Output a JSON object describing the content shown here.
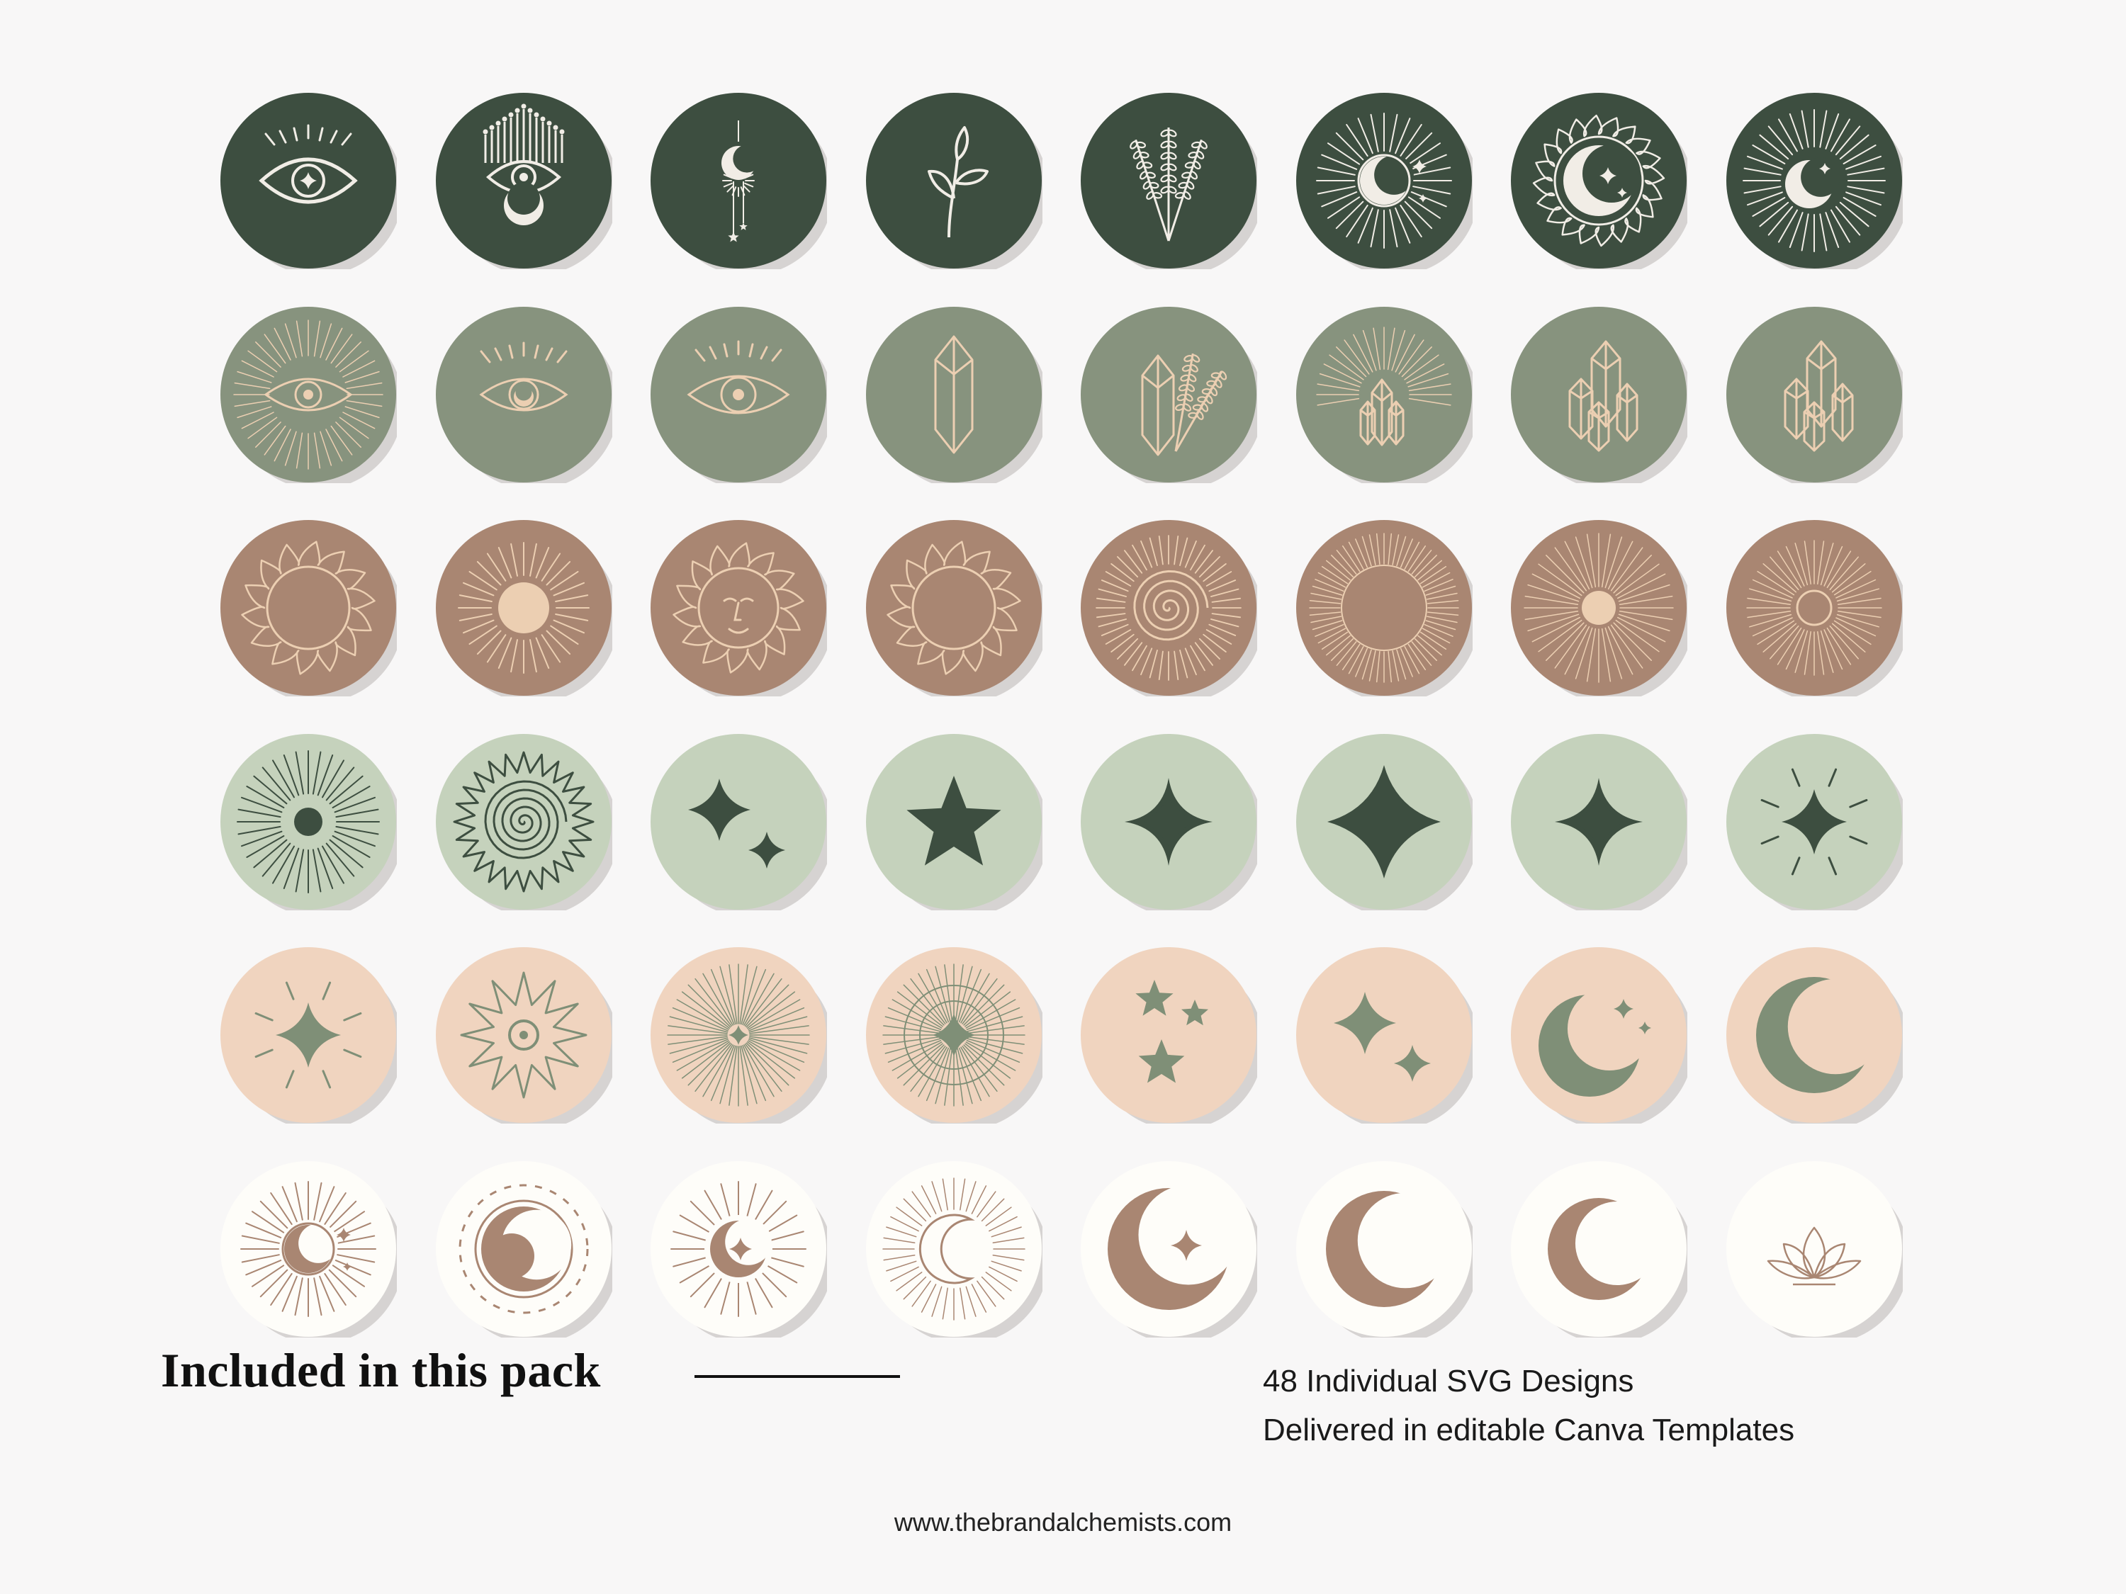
{
  "footer": {
    "heading": "Included in this pack",
    "details": [
      "48 Individual SVG Designs",
      "Delivered in editable Canva Templates"
    ],
    "website": "www.thebrandalchemists.com"
  },
  "colors": {
    "dark_green": "#3d4e40",
    "sage": "#87937e",
    "brown": "#a98672",
    "light_sage": "#c5d2bc",
    "peach": "#f0d4bf",
    "cream": "#fefdf9",
    "shadow": "#d6d3d2",
    "line_white": "#f1ede6",
    "line_peach": "#eccfb2",
    "motif_dark": "#3d4e40",
    "motif_sage": "#7f8f77",
    "motif_brown": "#a98672"
  },
  "rows": [
    {
      "bg": "dark_green",
      "fg": "line_white",
      "icons": [
        "eye-sparkle-icon",
        "evil-eye-crown-icon",
        "hanging-moon-icon",
        "botanical-sprig-icon",
        "lavender-icon",
        "moon-burst-icon",
        "sun-moon-icon",
        "crescent-burst-icon"
      ]
    },
    {
      "bg": "sage",
      "fg": "line_peach",
      "icons": [
        "eye-burst-icon",
        "eye-moon-icon",
        "eye-icon",
        "crystal-icon",
        "crystal-lavender-icon",
        "crystal-burst-icon",
        "crystal-cluster-icon",
        "crystal-cluster-icon"
      ]
    },
    {
      "bg": "brown",
      "fg": "line_peach",
      "icons": [
        "flame-sun-icon",
        "sun-icon",
        "sun-face-icon",
        "flame-sun-icon",
        "spiral-sun-icon",
        "sunburst-icon",
        "sun-rays-icon",
        "sunburst-small-icon"
      ]
    },
    {
      "bg": "light_sage",
      "fg": "motif_dark",
      "icons": [
        "dot-burst-icon",
        "spiral-star-sun-icon",
        "twin-sparkle-icon",
        "star-icon",
        "sparkle-icon",
        "sparkle-large-icon",
        "sparkle-icon",
        "sparkle-rays-icon"
      ]
    },
    {
      "bg": "peach",
      "fg": "motif_sage",
      "icons": [
        "sparkle-rays-icon",
        "star-burst-icon",
        "tiny-star-burst-icon",
        "compass-icon",
        "stars-trio-icon",
        "twin-sparkle-icon",
        "moon-sparkles-icon",
        "moon-icon"
      ]
    },
    {
      "bg": "cream",
      "fg": "motif_brown",
      "icons": [
        "moon-burst-icon",
        "dotted-moon-icon",
        "moon-star-burst-icon",
        "moon-line-icon",
        "moon-star-icon",
        "moon-icon",
        "thin-moon-icon",
        "lotus-icon"
      ]
    }
  ]
}
